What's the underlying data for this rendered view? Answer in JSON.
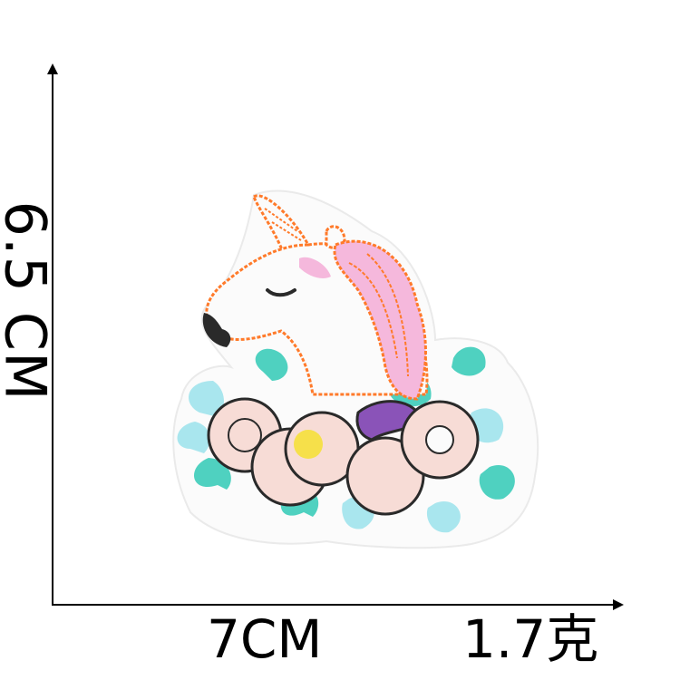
{
  "dimensions": {
    "height_label": "6.5 CM",
    "width_label": "7CM",
    "weight_label": "1.7克"
  },
  "colors": {
    "outline": "#ff7a2a",
    "mane_pink": "#f5b8dc",
    "leaf_teal": "#4fd1c0",
    "leaf_light": "#a9e6ee",
    "flower_blush": "#f7dcd6",
    "flower_center": "#f6e04a",
    "flower_purple": "#8a53b8",
    "nose_dark": "#2a2a2a"
  }
}
